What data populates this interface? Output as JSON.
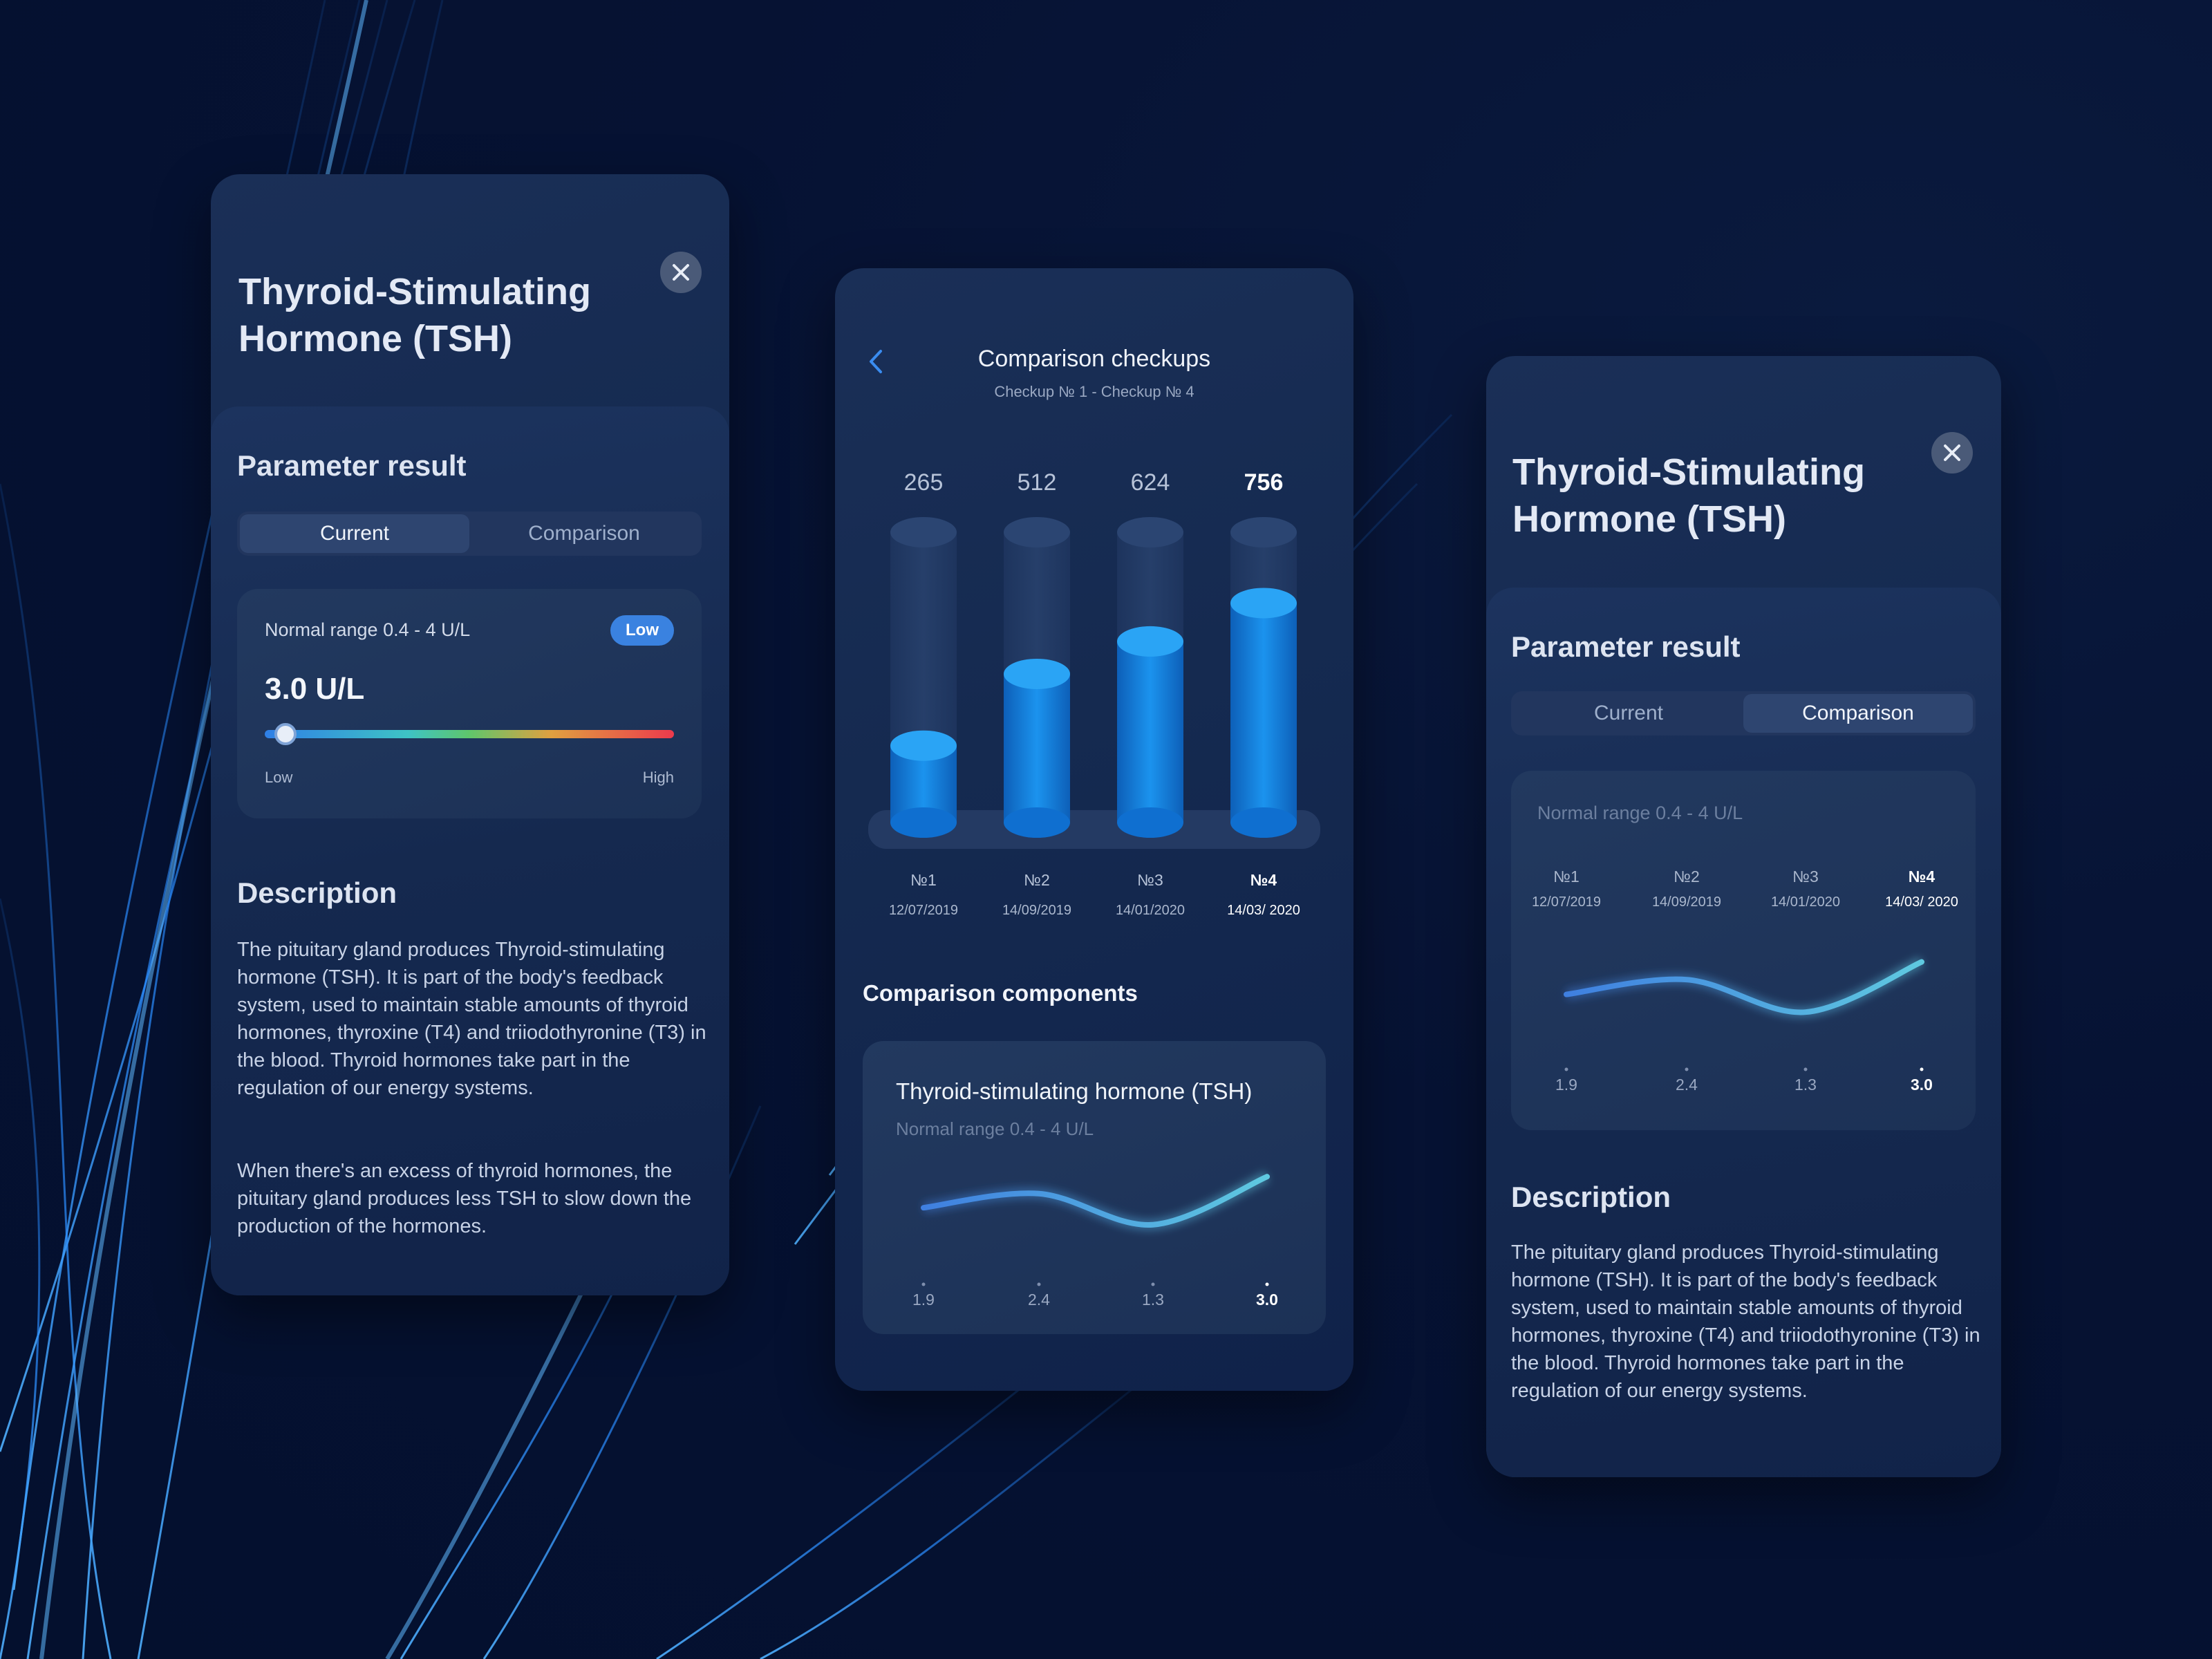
{
  "card1": {
    "title_line1": "Thyroid-Stimulating",
    "title_line2": "Hormone (TSH)",
    "section_title": "Parameter result",
    "tab_current": "Current",
    "tab_comparison": "Comparison",
    "normal_range": "Normal range 0.4 - 4 U/L",
    "badge": "Low",
    "value": "3.0 U/L",
    "slider_low": "Low",
    "slider_high": "High",
    "slider_fraction": 0.03,
    "description_title": "Description",
    "description_p1": "The pituitary gland produces Thyroid-stimulating hormone (TSH). It is part of the body's feedback system, used to maintain stable amounts of thyroid hormones, thyroxine (T4) and triiodothyronine (T3) in the blood. Thyroid hormones take part in the regulation of our energy systems.",
    "description_p2": "When there's an excess of thyroid hormones, the pituitary gland produces less TSH to slow down the production of the hormones."
  },
  "card2": {
    "title": "Comparison checkups",
    "subtitle": "Checkup № 1 - Checkup № 4",
    "components_title": "Comparison components",
    "component_name": "Thyroid-stimulating hormone (TSH)",
    "component_range": "Normal range 0.4 - 4 U/L",
    "line_values": [
      "1.9",
      "2.4",
      "1.3",
      "3.0"
    ]
  },
  "card3": {
    "title_line1": "Thyroid-Stimulating",
    "title_line2": "Hormone (TSH)",
    "section_title": "Parameter result",
    "tab_current": "Current",
    "tab_comparison": "Comparison",
    "normal_range": "Normal range 0.4 - 4 U/L",
    "checkups": [
      {
        "label": "№1",
        "date": "12/07/2019"
      },
      {
        "label": "№2",
        "date": "14/09/2019"
      },
      {
        "label": "№3",
        "date": "14/01/2020"
      },
      {
        "label": "№4",
        "date": "14/03/ 2020"
      }
    ],
    "line_values": [
      "1.9",
      "2.4",
      "1.3",
      "3.0"
    ],
    "description_title": "Description",
    "description_p1": "The pituitary gland produces Thyroid-stimulating hormone (TSH). It is part of the body's feedback system, used to maintain stable amounts of thyroid hormones, thyroxine (T4) and triiodothyronine (T3) in the blood. Thyroid hormones take part in the regulation of our energy systems."
  },
  "chart_data": [
    {
      "type": "bar",
      "categories": [
        "№1",
        "№2",
        "№3",
        "№4"
      ],
      "dates": [
        "12/07/2019",
        "14/09/2019",
        "14/01/2020",
        "14/03/ 2020"
      ],
      "values": [
        265,
        512,
        624,
        756
      ],
      "ylim": [
        0,
        1000
      ],
      "highlight_index": 3
    },
    {
      "type": "line",
      "x": [
        "№1",
        "№2",
        "№3",
        "№4"
      ],
      "values": [
        1.9,
        2.4,
        1.3,
        3.0
      ]
    }
  ],
  "colors": {
    "accent": "#1e8fe8",
    "badge": "#3a82e0",
    "line_start": "#3f7fe0",
    "line_end": "#5fc9e0"
  }
}
